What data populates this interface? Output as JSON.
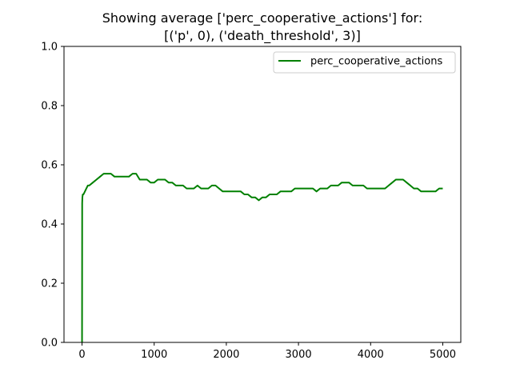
{
  "chart_data": {
    "type": "line",
    "title": "Showing average ['perc_cooperative_actions'] for:",
    "subtitle": "[('p', 0), ('death_threshold', 3)]",
    "xlabel": "",
    "ylabel": "",
    "xlim": [
      -250,
      5250
    ],
    "ylim": [
      0,
      1
    ],
    "x_ticks": [
      0,
      1000,
      2000,
      3000,
      4000,
      5000
    ],
    "x_tick_labels": [
      "0",
      "1000",
      "2000",
      "3000",
      "4000",
      "5000"
    ],
    "y_ticks": [
      0,
      0.2,
      0.4,
      0.6,
      0.8,
      1.0
    ],
    "y_tick_labels": [
      "0.0",
      "0.2",
      "0.4",
      "0.6",
      "0.8",
      "1.0"
    ],
    "grid": false,
    "legend_position": "top-right",
    "series": [
      {
        "name": "perc_cooperative_actions",
        "color": "#008000",
        "x": [
          0,
          2,
          5,
          10,
          20,
          40,
          60,
          80,
          100,
          150,
          200,
          250,
          300,
          350,
          400,
          450,
          500,
          550,
          600,
          650,
          700,
          750,
          800,
          850,
          900,
          950,
          1000,
          1050,
          1100,
          1150,
          1200,
          1250,
          1300,
          1350,
          1400,
          1450,
          1500,
          1550,
          1600,
          1650,
          1700,
          1750,
          1800,
          1850,
          1900,
          1950,
          2000,
          2050,
          2100,
          2150,
          2200,
          2250,
          2300,
          2350,
          2400,
          2450,
          2500,
          2550,
          2600,
          2650,
          2700,
          2750,
          2800,
          2850,
          2900,
          2950,
          3000,
          3050,
          3100,
          3150,
          3200,
          3250,
          3300,
          3350,
          3400,
          3450,
          3500,
          3550,
          3600,
          3650,
          3700,
          3750,
          3800,
          3850,
          3900,
          3950,
          4000,
          4050,
          4100,
          4150,
          4200,
          4250,
          4300,
          4350,
          4400,
          4450,
          4500,
          4550,
          4600,
          4650,
          4700,
          4750,
          4800,
          4850,
          4900,
          4950,
          5000
        ],
        "y": [
          0.0,
          0.47,
          0.49,
          0.5,
          0.5,
          0.51,
          0.52,
          0.53,
          0.53,
          0.54,
          0.55,
          0.56,
          0.57,
          0.57,
          0.57,
          0.56,
          0.56,
          0.56,
          0.56,
          0.56,
          0.57,
          0.57,
          0.55,
          0.55,
          0.55,
          0.54,
          0.54,
          0.55,
          0.55,
          0.55,
          0.54,
          0.54,
          0.53,
          0.53,
          0.53,
          0.52,
          0.52,
          0.52,
          0.53,
          0.52,
          0.52,
          0.52,
          0.53,
          0.53,
          0.52,
          0.51,
          0.51,
          0.51,
          0.51,
          0.51,
          0.51,
          0.5,
          0.5,
          0.49,
          0.49,
          0.48,
          0.49,
          0.49,
          0.5,
          0.5,
          0.5,
          0.51,
          0.51,
          0.51,
          0.51,
          0.52,
          0.52,
          0.52,
          0.52,
          0.52,
          0.52,
          0.51,
          0.52,
          0.52,
          0.52,
          0.53,
          0.53,
          0.53,
          0.54,
          0.54,
          0.54,
          0.53,
          0.53,
          0.53,
          0.53,
          0.52,
          0.52,
          0.52,
          0.52,
          0.52,
          0.52,
          0.53,
          0.54,
          0.55,
          0.55,
          0.55,
          0.54,
          0.53,
          0.52,
          0.52,
          0.51,
          0.51,
          0.51,
          0.51,
          0.51,
          0.52,
          0.52
        ]
      }
    ]
  }
}
